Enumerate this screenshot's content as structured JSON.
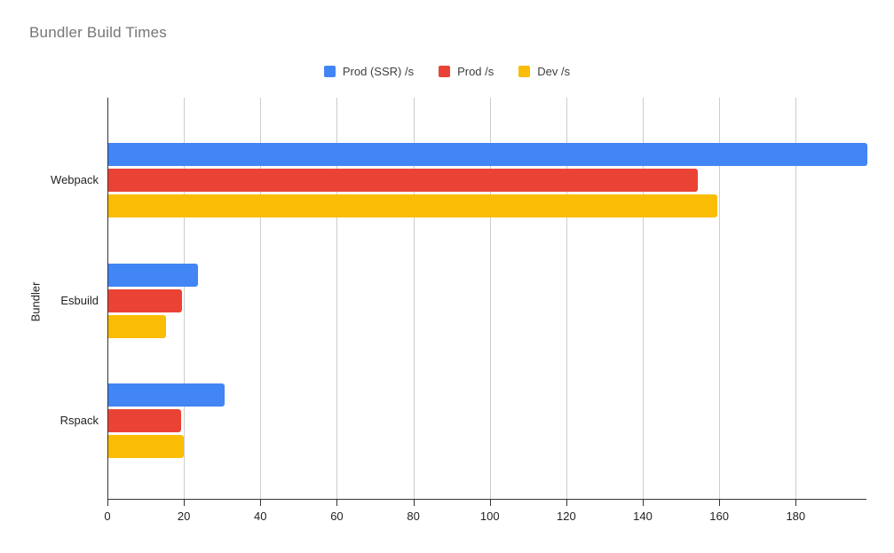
{
  "chart_data": {
    "type": "bar",
    "orientation": "horizontal",
    "title": "Bundler Build Times",
    "xlabel": "",
    "ylabel": "Bundler",
    "categories": [
      "Webpack",
      "Esbuild",
      "Rspack"
    ],
    "series": [
      {
        "name": "Prod (SSR) /s",
        "color": "#4285F4",
        "values": [
          198.5,
          23.5,
          30.5
        ]
      },
      {
        "name": "Prod /s",
        "color": "#EA4335",
        "values": [
          154.2,
          19.3,
          19.1
        ]
      },
      {
        "name": "Dev /s",
        "color": "#FBBC04",
        "values": [
          159.3,
          15.1,
          19.8
        ]
      }
    ],
    "x_ticks": [
      0,
      20,
      40,
      60,
      80,
      100,
      120,
      140,
      160,
      180
    ],
    "xlim": [
      0,
      198.5
    ],
    "grid": true,
    "legend_position": "top",
    "colors": {
      "title_text": "#757575",
      "axis_text": "#222222",
      "legend_text": "#3c4043",
      "gridline": "#cccccc",
      "axis_line": "#333333",
      "background": "#ffffff"
    }
  }
}
